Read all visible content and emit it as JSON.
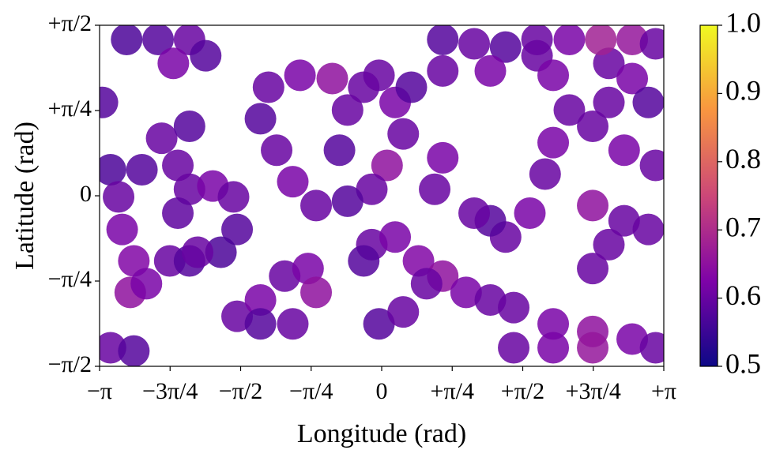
{
  "chart_data": {
    "type": "scatter",
    "x_label": "Longitude (rad)",
    "y_label": "Latitude (rad)",
    "xlim": [
      -3.141593,
      3.141593
    ],
    "ylim": [
      -1.570796,
      1.570796
    ],
    "xticks": [
      {
        "value": -3.141593,
        "label": "−π"
      },
      {
        "value": -2.356194,
        "label": "−3π/4"
      },
      {
        "value": -1.570796,
        "label": "−π/2"
      },
      {
        "value": -0.785398,
        "label": "−π/4"
      },
      0,
      {
        "value": 0.785398,
        "label": "+π/4"
      },
      {
        "value": 1.570796,
        "label": "+π/2"
      },
      {
        "value": 2.356194,
        "label": "+3π/4"
      },
      {
        "value": 3.141593,
        "label": "+π"
      }
    ],
    "yticks": [
      {
        "value": -1.570796,
        "label": "−π/2"
      },
      {
        "value": -0.785398,
        "label": "−π/4"
      },
      0,
      {
        "value": 0.785398,
        "label": "+π/4"
      },
      {
        "value": 1.570796,
        "label": "+π/2"
      }
    ],
    "colormap": "plasma",
    "clim": [
      0.5,
      1.0
    ],
    "cticks": [
      0.5,
      0.6,
      0.7,
      0.8,
      0.9,
      {
        "value": 1,
        "label": "1.0"
      }
    ],
    "x": [
      -3.11,
      -2.45,
      -2.14,
      -2.27,
      -2.67,
      -3.02,
      -2.93,
      -2.89,
      -2.76,
      -2.8,
      -2.62,
      -2.36,
      -2.14,
      -2.14,
      -1.88,
      -1.65,
      -1.61,
      -1.79,
      -2.05,
      -2.27,
      -2.84,
      -2.49,
      -2.14,
      -1.96,
      -2.32,
      -3.02,
      -2.76,
      -1.26,
      -0.91,
      -0.55,
      -0.2,
      0.15,
      0.24,
      0.06,
      -0.11,
      -0.38,
      -0.73,
      -0.99,
      -1.17,
      -1.35,
      -0.38,
      -0.47,
      -1.61,
      -1.35,
      -1.08,
      -0.82,
      -0.73,
      -0.99,
      -1.35,
      0.68,
      0.59,
      0.68,
      1.03,
      1.38,
      1.73,
      1.21,
      0.68,
      0.33,
      -0.03,
      1.91,
      2.09,
      1.91,
      1.82,
      1.65,
      1.38,
      1.21,
      1.03,
      2.53,
      2.79,
      2.53,
      2.35,
      2.7,
      3.05,
      2.97,
      2.35,
      2.7,
      2.97,
      2.53,
      2.35,
      -0.11,
      0.15,
      0.41,
      0.68,
      0.94,
      1.21,
      1.47,
      1.91,
      2.35,
      2.79,
      3.05,
      -0.03,
      0.24,
      0.5,
      -0.2,
      1.73,
      2.09,
      2.44,
      2.79,
      3.05,
      1.47,
      1.91,
      2.35
    ],
    "y": [
      0.86,
      0.53,
      0.64,
      0.28,
      0.24,
      0.24,
      -0.01,
      -0.31,
      -0.6,
      -0.89,
      -0.81,
      -0.6,
      -0.6,
      0.06,
      0.09,
      -0.01,
      -0.31,
      -0.52,
      -0.52,
      -0.16,
      1.44,
      1.44,
      1.44,
      1.29,
      1.22,
      -1.4,
      -1.43,
      1.0,
      1.11,
      1.08,
      1.0,
      0.86,
      0.57,
      0.28,
      0.06,
      -0.05,
      -0.09,
      0.13,
      0.42,
      0.71,
      0.79,
      0.42,
      -1.11,
      -0.96,
      -0.74,
      -0.67,
      -0.89,
      -1.18,
      -1.18,
      0.35,
      0.06,
      1.44,
      1.4,
      1.37,
      1.29,
      1.15,
      1.15,
      1.0,
      1.11,
      1.11,
      0.79,
      0.49,
      0.2,
      -0.16,
      -0.38,
      -0.23,
      -0.16,
      1.22,
      1.08,
      0.86,
      0.64,
      0.42,
      0.28,
      0.86,
      -0.09,
      -0.23,
      -0.31,
      -0.45,
      -0.67,
      -0.45,
      -0.38,
      -0.6,
      -0.74,
      -0.89,
      -0.96,
      -1.03,
      -1.18,
      -1.25,
      -1.32,
      -1.4,
      -1.18,
      -1.07,
      -0.81,
      -0.6,
      1.44,
      1.44,
      1.44,
      1.44,
      1.4,
      -1.4,
      -1.4,
      -1.4
    ],
    "c": [
      0.58,
      0.6,
      0.58,
      0.6,
      0.58,
      0.57,
      0.6,
      0.62,
      0.63,
      0.65,
      0.62,
      0.6,
      0.58,
      0.6,
      0.62,
      0.6,
      0.58,
      0.57,
      0.6,
      0.59,
      0.57,
      0.58,
      0.6,
      0.58,
      0.62,
      0.6,
      0.58,
      0.6,
      0.62,
      0.65,
      0.6,
      0.62,
      0.6,
      0.65,
      0.6,
      0.58,
      0.6,
      0.62,
      0.6,
      0.58,
      0.6,
      0.58,
      0.6,
      0.62,
      0.6,
      0.62,
      0.65,
      0.6,
      0.58,
      0.62,
      0.6,
      0.58,
      0.6,
      0.58,
      0.6,
      0.62,
      0.6,
      0.58,
      0.6,
      0.62,
      0.6,
      0.62,
      0.6,
      0.62,
      0.6,
      0.58,
      0.6,
      0.6,
      0.62,
      0.6,
      0.6,
      0.62,
      0.6,
      0.58,
      0.65,
      0.6,
      0.6,
      0.6,
      0.6,
      0.6,
      0.62,
      0.63,
      0.65,
      0.62,
      0.6,
      0.6,
      0.62,
      0.65,
      0.62,
      0.6,
      0.58,
      0.6,
      0.6,
      0.58,
      0.6,
      0.62,
      0.68,
      0.66,
      0.6,
      0.6,
      0.62,
      0.66
    ]
  }
}
